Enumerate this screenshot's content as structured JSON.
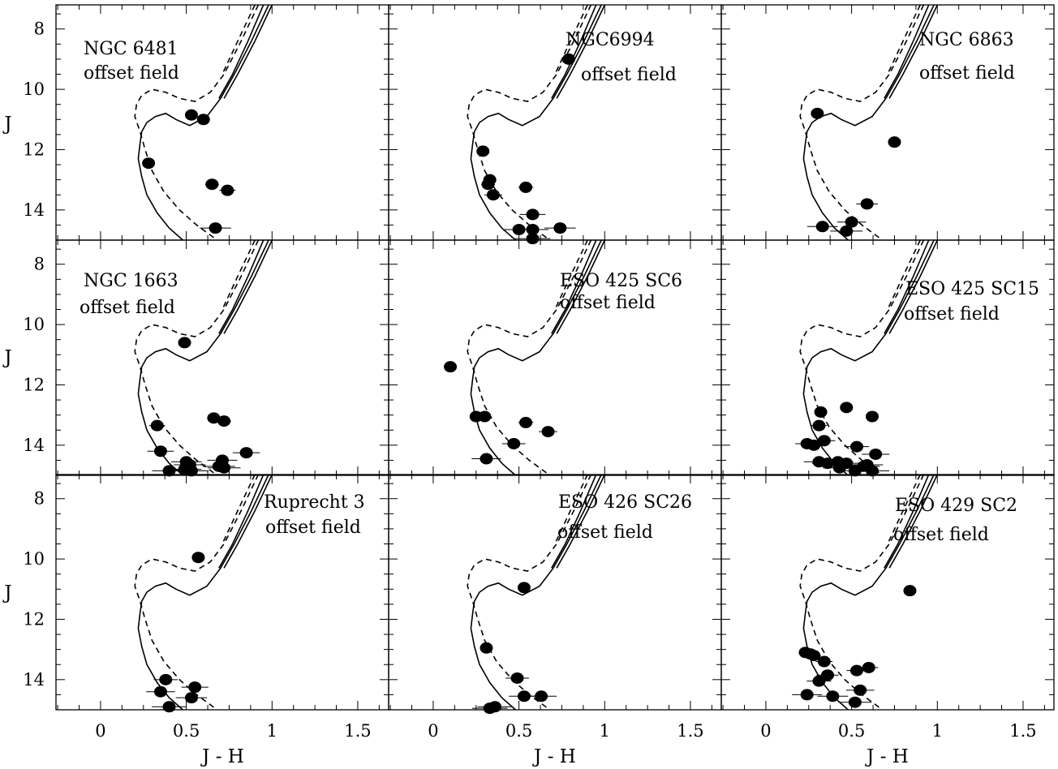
{
  "figure": {
    "x_axis_title": "J - H",
    "y_axis_title": "J",
    "x_ticks": [
      "0",
      "0.5",
      "1",
      "1.5"
    ],
    "y_ticks": [
      "8",
      "10",
      "12",
      "14"
    ]
  },
  "chart_data": [
    {
      "type": "scatter",
      "title_lines": [
        "NGC 6481",
        "offset field"
      ],
      "xlim": [
        -0.26,
        1.68
      ],
      "ylim": [
        15,
        7.2
      ],
      "isochrones": true,
      "values": [
        [
          0.28,
          12.45
        ],
        [
          0.53,
          10.85
        ],
        [
          0.6,
          11.0
        ],
        [
          0.65,
          13.15
        ],
        [
          0.74,
          13.35
        ],
        [
          0.67,
          14.6
        ]
      ]
    },
    {
      "type": "scatter",
      "title_lines": [
        "NGC6994",
        "offset field"
      ],
      "xlim": [
        -0.26,
        1.68
      ],
      "ylim": [
        15,
        7.2
      ],
      "isochrones": true,
      "values": [
        [
          0.79,
          9.0
        ],
        [
          0.29,
          12.05
        ],
        [
          0.33,
          13.0
        ],
        [
          0.32,
          13.15
        ],
        [
          0.35,
          13.5
        ],
        [
          0.54,
          13.25
        ],
        [
          0.58,
          14.15
        ],
        [
          0.5,
          14.65
        ],
        [
          0.58,
          14.65
        ],
        [
          0.58,
          14.95
        ],
        [
          0.74,
          14.6
        ]
      ]
    },
    {
      "type": "scatter",
      "title_lines": [
        "NGC 6863",
        "offset field"
      ],
      "xlim": [
        -0.26,
        1.68
      ],
      "ylim": [
        15,
        7.2
      ],
      "isochrones": true,
      "values": [
        [
          0.3,
          10.8
        ],
        [
          0.75,
          11.75
        ],
        [
          0.59,
          13.8
        ],
        [
          0.33,
          14.55
        ],
        [
          0.5,
          14.4
        ],
        [
          0.47,
          14.7
        ]
      ]
    },
    {
      "type": "scatter",
      "title_lines": [
        "NGC 1663",
        "offset field"
      ],
      "xlim": [
        -0.26,
        1.68
      ],
      "ylim": [
        15,
        7.2
      ],
      "isochrones": true,
      "values": [
        [
          0.49,
          10.6
        ],
        [
          0.33,
          13.35
        ],
        [
          0.35,
          14.2
        ],
        [
          0.66,
          13.1
        ],
        [
          0.72,
          13.2
        ],
        [
          0.85,
          14.25
        ],
        [
          0.71,
          14.5
        ],
        [
          0.5,
          14.55
        ],
        [
          0.52,
          14.65
        ],
        [
          0.69,
          14.7
        ],
        [
          0.72,
          14.75
        ],
        [
          0.4,
          14.85
        ],
        [
          0.53,
          14.85
        ],
        [
          0.49,
          14.8
        ]
      ]
    },
    {
      "type": "scatter",
      "title_lines": [
        "ESO 425 SC6",
        "offset field"
      ],
      "xlim": [
        -0.26,
        1.68
      ],
      "ylim": [
        15,
        7.2
      ],
      "isochrones": true,
      "values": [
        [
          0.1,
          11.4
        ],
        [
          0.25,
          13.05
        ],
        [
          0.3,
          13.05
        ],
        [
          0.54,
          13.25
        ],
        [
          0.67,
          13.55
        ],
        [
          0.47,
          13.95
        ],
        [
          0.31,
          14.45
        ]
      ]
    },
    {
      "type": "scatter",
      "title_lines": [
        "ESO 425 SC15",
        "offset field"
      ],
      "xlim": [
        -0.26,
        1.68
      ],
      "ylim": [
        15,
        7.2
      ],
      "isochrones": true,
      "values": [
        [
          0.47,
          12.75
        ],
        [
          0.62,
          13.05
        ],
        [
          0.32,
          12.9
        ],
        [
          0.31,
          13.35
        ],
        [
          0.34,
          13.85
        ],
        [
          0.24,
          13.95
        ],
        [
          0.28,
          14.0
        ],
        [
          0.53,
          14.05
        ],
        [
          0.64,
          14.3
        ],
        [
          0.31,
          14.55
        ],
        [
          0.36,
          14.6
        ],
        [
          0.42,
          14.55
        ],
        [
          0.47,
          14.6
        ],
        [
          0.43,
          14.75
        ],
        [
          0.59,
          14.65
        ],
        [
          0.62,
          14.85
        ],
        [
          0.52,
          14.85
        ],
        [
          0.57,
          14.7
        ]
      ]
    },
    {
      "type": "scatter",
      "title_lines": [
        "Ruprecht 3",
        "offset field"
      ],
      "xlim": [
        -0.26,
        1.68
      ],
      "ylim": [
        15,
        7.2
      ],
      "isochrones": true,
      "values": [
        [
          0.57,
          9.95
        ],
        [
          0.38,
          14.0
        ],
        [
          0.35,
          14.4
        ],
        [
          0.55,
          14.25
        ],
        [
          0.53,
          14.6
        ],
        [
          0.4,
          14.9
        ]
      ]
    },
    {
      "type": "scatter",
      "title_lines": [
        "ESO 426 SC26",
        "offset field"
      ],
      "xlim": [
        -0.26,
        1.68
      ],
      "ylim": [
        15,
        7.2
      ],
      "isochrones": true,
      "values": [
        [
          0.53,
          10.95
        ],
        [
          0.31,
          12.95
        ],
        [
          0.49,
          13.95
        ],
        [
          0.53,
          14.55
        ],
        [
          0.63,
          14.55
        ],
        [
          0.33,
          14.95
        ],
        [
          0.36,
          14.9
        ]
      ]
    },
    {
      "type": "scatter",
      "title_lines": [
        "ESO 429 SC2",
        "offset field"
      ],
      "xlim": [
        -0.26,
        1.68
      ],
      "ylim": [
        15,
        7.2
      ],
      "isochrones": true,
      "values": [
        [
          0.84,
          11.05
        ],
        [
          0.23,
          13.1
        ],
        [
          0.26,
          13.15
        ],
        [
          0.28,
          13.2
        ],
        [
          0.34,
          13.4
        ],
        [
          0.53,
          13.7
        ],
        [
          0.6,
          13.6
        ],
        [
          0.36,
          13.85
        ],
        [
          0.31,
          14.05
        ],
        [
          0.24,
          14.5
        ],
        [
          0.39,
          14.55
        ],
        [
          0.55,
          14.35
        ],
        [
          0.52,
          14.75
        ]
      ]
    }
  ]
}
